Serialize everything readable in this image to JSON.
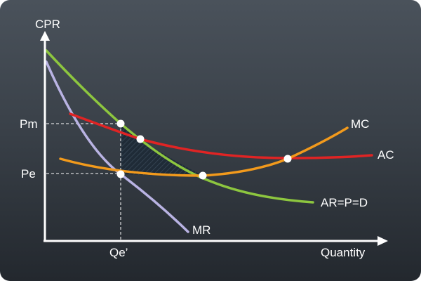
{
  "axes": {
    "y_title": "CPR",
    "x_title": "Quantity"
  },
  "y_ticks": {
    "pm": "Pm",
    "pe": "Pe"
  },
  "x_ticks": {
    "qe": "Qe’"
  },
  "curves": {
    "mc": {
      "label": "MC",
      "color": "#f29a1c"
    },
    "ac": {
      "label": "AC",
      "color": "#e02424"
    },
    "demand": {
      "label": "AR=P=D",
      "color": "#8dc63f"
    },
    "mr": {
      "label": "MR",
      "color": "#b9b3e3"
    }
  },
  "colors": {
    "axis": "#ffffff",
    "guide": "#ffffff",
    "point": "#ffffff",
    "shaded": "#1f2f3f"
  }
}
